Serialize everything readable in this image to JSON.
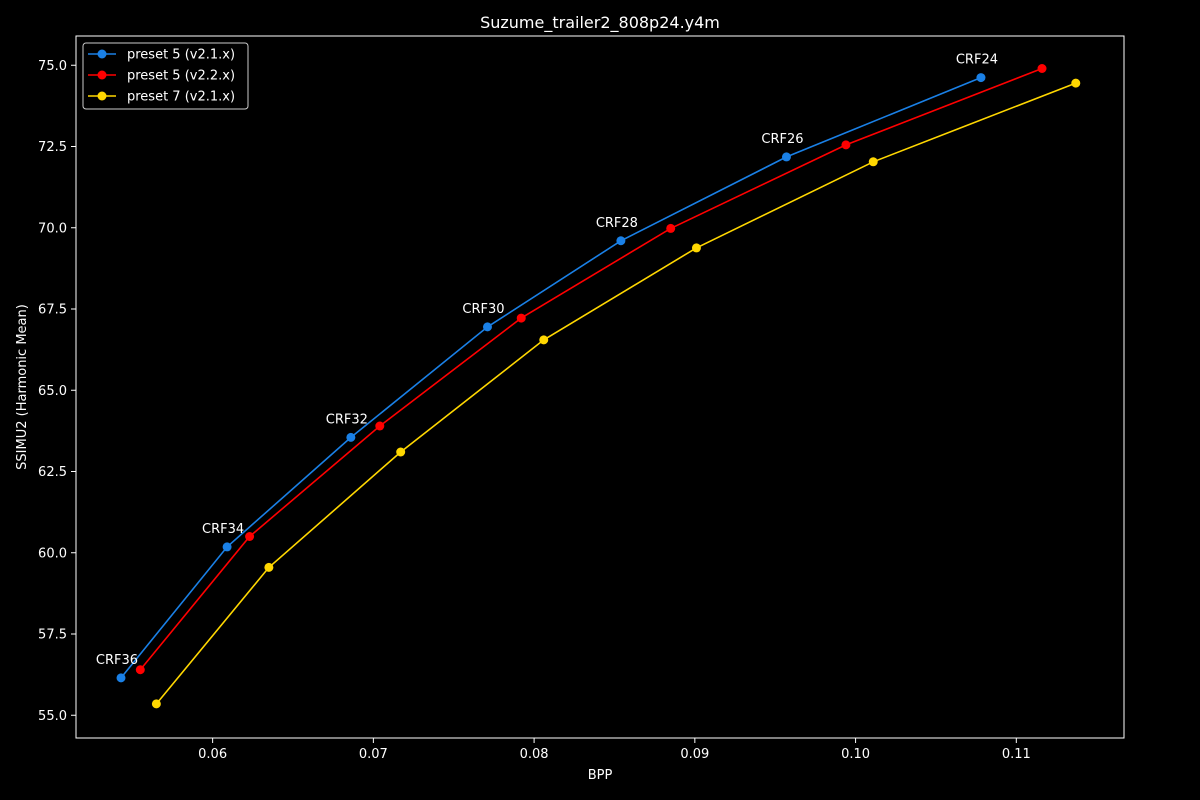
{
  "chart_data": {
    "type": "line",
    "title": "Suzume_trailer2_808p24.y4m",
    "xlabel": "BPP",
    "ylabel": "SSIMU2 (Harmonic Mean)",
    "xlim": [
      0.0515,
      0.1167
    ],
    "ylim": [
      54.3,
      75.9
    ],
    "x_ticks": [
      "0.06",
      "0.07",
      "0.08",
      "0.09",
      "0.10",
      "0.11"
    ],
    "y_ticks": [
      "55.0",
      "57.5",
      "60.0",
      "62.5",
      "65.0",
      "67.5",
      "70.0",
      "72.5",
      "75.0"
    ],
    "grid": false,
    "legend_position": "upper-left",
    "series": [
      {
        "name": "preset 5 (v2.1.x)",
        "color": "#1a80e6",
        "x": [
          0.0543,
          0.0609,
          0.0686,
          0.0771,
          0.0854,
          0.0957,
          0.1078
        ],
        "y": [
          56.15,
          60.18,
          63.55,
          66.95,
          69.6,
          72.18,
          74.62
        ]
      },
      {
        "name": "preset 5 (v2.2.x)",
        "color": "#ff0000",
        "x": [
          0.0555,
          0.0623,
          0.0704,
          0.0792,
          0.0885,
          0.0994,
          0.1116
        ],
        "y": [
          56.4,
          60.5,
          63.9,
          67.22,
          69.98,
          72.55,
          74.9
        ]
      },
      {
        "name": "preset 7 (v2.1.x)",
        "color": "#ffd700",
        "x": [
          0.0565,
          0.0635,
          0.0717,
          0.0806,
          0.0901,
          0.1011,
          0.1137
        ],
        "y": [
          55.35,
          59.55,
          63.1,
          66.55,
          69.38,
          72.03,
          74.45
        ]
      }
    ],
    "annotations": [
      {
        "text": "CRF36",
        "x": 0.0543,
        "y": 56.15
      },
      {
        "text": "CRF34",
        "x": 0.0609,
        "y": 60.18
      },
      {
        "text": "CRF32",
        "x": 0.0686,
        "y": 63.55
      },
      {
        "text": "CRF30",
        "x": 0.0771,
        "y": 66.95
      },
      {
        "text": "CRF28",
        "x": 0.0854,
        "y": 69.6
      },
      {
        "text": "CRF26",
        "x": 0.0957,
        "y": 72.18
      },
      {
        "text": "CRF24",
        "x": 0.1078,
        "y": 74.62
      }
    ]
  }
}
